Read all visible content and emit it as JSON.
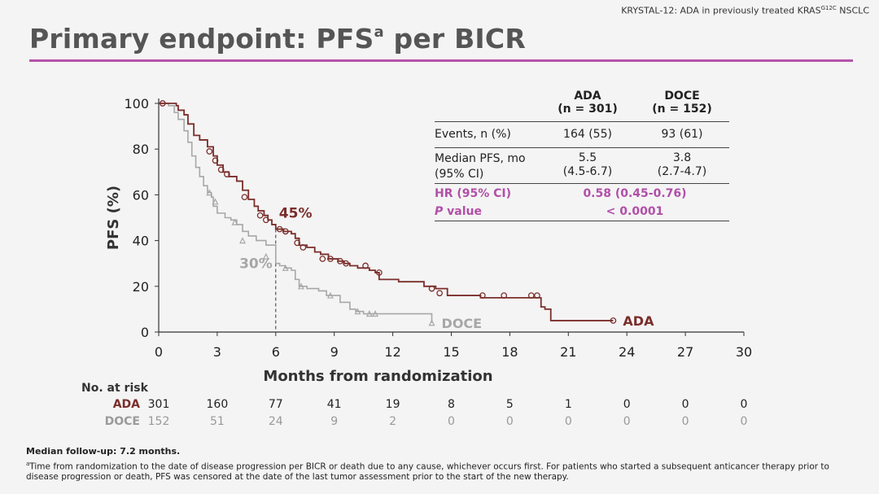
{
  "header": {
    "context_prefix": "KRYSTAL-12: ADA in previously treated KRAS",
    "context_sup": "G12C",
    "context_suffix": " NSCLC",
    "title_main": "Primary endpoint: PFS",
    "title_sup": "a",
    "title_suffix": " per BICR"
  },
  "table": {
    "col1_header": [
      "ADA",
      "(n = 301)"
    ],
    "col2_header": [
      "DOCE",
      "(n = 152)"
    ],
    "rows": [
      {
        "label": [
          "Events, n (%)"
        ],
        "v1": [
          "164 (55)"
        ],
        "v2": [
          "93 (61)"
        ]
      },
      {
        "label": [
          "Median PFS, mo",
          "(95% CI)"
        ],
        "v1": [
          "5.5",
          "(4.5-6.7)"
        ],
        "v2": [
          "3.8",
          "(2.7-4.7)"
        ]
      }
    ],
    "hr_label": "HR (95% CI)",
    "hr_value": "0.58 (0.45-0.76)",
    "p_label_italic": "P",
    "p_label_rest": " value",
    "p_value": "< 0.0001"
  },
  "chart_data": {
    "type": "line",
    "xlabel": "Months from randomization",
    "ylabel": "PFS (%)",
    "xlim": [
      0,
      30
    ],
    "ylim": [
      0,
      100
    ],
    "xticks": [
      0,
      3,
      6,
      9,
      12,
      15,
      18,
      21,
      24,
      27,
      30
    ],
    "yticks": [
      0,
      20,
      40,
      60,
      80,
      100
    ],
    "annotations": [
      {
        "text": "45%",
        "x": 6,
        "y": 45,
        "series": "ADA"
      },
      {
        "text": "30%",
        "x": 6,
        "y": 30,
        "series": "DOCE"
      }
    ],
    "series": [
      {
        "name": "ADA",
        "color": "#7a2e2b",
        "points": [
          [
            0,
            100
          ],
          [
            0.4,
            100
          ],
          [
            0.9,
            99
          ],
          [
            1,
            97
          ],
          [
            1.3,
            95
          ],
          [
            1.5,
            91
          ],
          [
            1.8,
            86
          ],
          [
            2.1,
            84
          ],
          [
            2.5,
            81
          ],
          [
            2.8,
            77
          ],
          [
            3,
            73
          ],
          [
            3.3,
            70
          ],
          [
            3.6,
            68
          ],
          [
            4,
            66
          ],
          [
            4.3,
            62
          ],
          [
            4.6,
            58
          ],
          [
            4.9,
            55
          ],
          [
            5.1,
            53
          ],
          [
            5.4,
            51
          ],
          [
            5.6,
            49
          ],
          [
            5.8,
            47
          ],
          [
            6,
            45
          ],
          [
            6.4,
            44
          ],
          [
            6.8,
            43
          ],
          [
            7,
            41
          ],
          [
            7.2,
            38
          ],
          [
            7.6,
            37
          ],
          [
            8,
            35
          ],
          [
            8.3,
            34
          ],
          [
            8.7,
            32
          ],
          [
            9.2,
            31
          ],
          [
            9.5,
            30
          ],
          [
            9.8,
            29
          ],
          [
            10.2,
            28
          ],
          [
            10.8,
            27
          ],
          [
            11.1,
            26
          ],
          [
            11.3,
            23
          ],
          [
            11.8,
            23
          ],
          [
            12.3,
            22
          ],
          [
            13,
            22
          ],
          [
            13.6,
            20
          ],
          [
            14.2,
            19
          ],
          [
            14.8,
            16
          ],
          [
            15.5,
            16
          ],
          [
            16.5,
            15
          ],
          [
            19.5,
            15
          ],
          [
            19.6,
            11
          ],
          [
            19.7,
            11
          ],
          [
            19.8,
            10
          ],
          [
            20.1,
            8
          ],
          [
            20.1,
            5
          ],
          [
            23.3,
            5
          ]
        ],
        "censored": [
          [
            0.2,
            100
          ],
          [
            2.6,
            79
          ],
          [
            2.9,
            75
          ],
          [
            3.2,
            71
          ],
          [
            3.5,
            69
          ],
          [
            4.4,
            59
          ],
          [
            5.2,
            51
          ],
          [
            5.5,
            49
          ],
          [
            6.2,
            45
          ],
          [
            6.5,
            44
          ],
          [
            7.1,
            39
          ],
          [
            7.4,
            37
          ],
          [
            8.4,
            32
          ],
          [
            8.8,
            32
          ],
          [
            9.3,
            31
          ],
          [
            9.6,
            30
          ],
          [
            10.6,
            29
          ],
          [
            11.3,
            26
          ],
          [
            14,
            19
          ],
          [
            14.4,
            17
          ],
          [
            16.6,
            16
          ],
          [
            17.7,
            16
          ],
          [
            19.1,
            16
          ],
          [
            19.4,
            16
          ],
          [
            23.3,
            5
          ]
        ]
      },
      {
        "name": "DOCE",
        "color": "#a7a7a7",
        "points": [
          [
            0,
            100
          ],
          [
            0.5,
            99
          ],
          [
            0.8,
            96
          ],
          [
            1,
            93
          ],
          [
            1.3,
            88
          ],
          [
            1.5,
            83
          ],
          [
            1.7,
            77
          ],
          [
            1.9,
            72
          ],
          [
            2.1,
            68
          ],
          [
            2.3,
            64
          ],
          [
            2.5,
            61
          ],
          [
            2.7,
            59
          ],
          [
            2.8,
            55
          ],
          [
            3,
            52
          ],
          [
            3.4,
            50
          ],
          [
            3.7,
            49
          ],
          [
            4,
            47
          ],
          [
            4.3,
            44
          ],
          [
            4.6,
            42
          ],
          [
            5,
            40
          ],
          [
            5.5,
            38
          ],
          [
            6,
            30
          ],
          [
            6.2,
            29
          ],
          [
            6.5,
            28
          ],
          [
            6.8,
            27
          ],
          [
            7,
            23
          ],
          [
            7.2,
            20
          ],
          [
            7.6,
            19
          ],
          [
            8.2,
            18
          ],
          [
            8.6,
            16
          ],
          [
            9.3,
            13
          ],
          [
            9.8,
            10
          ],
          [
            10.1,
            9
          ],
          [
            10.5,
            8
          ],
          [
            14,
            8
          ],
          [
            14,
            4
          ]
        ],
        "censored": [
          [
            2.6,
            61
          ],
          [
            2.9,
            57
          ],
          [
            3.9,
            48
          ],
          [
            4.3,
            40
          ],
          [
            5.5,
            33
          ],
          [
            6.5,
            28
          ],
          [
            7.3,
            20
          ],
          [
            8.8,
            16
          ],
          [
            10.2,
            9
          ],
          [
            10.8,
            8
          ],
          [
            11.1,
            8
          ],
          [
            14,
            4
          ]
        ]
      }
    ],
    "risk_table": {
      "header": "No. at risk",
      "times": [
        0,
        3,
        6,
        9,
        12,
        15,
        18,
        21,
        24,
        27,
        30
      ],
      "rows": [
        {
          "name": "ADA",
          "color": "#7a2e2b",
          "values": [
            "301",
            "160",
            "77",
            "41",
            "19",
            "8",
            "5",
            "1",
            "0",
            "0",
            "0"
          ]
        },
        {
          "name": "DOCE",
          "color": "#9a9a9a",
          "values": [
            "152",
            "51",
            "24",
            "9",
            "2",
            "0",
            "0",
            "0",
            "0",
            "0",
            "0"
          ]
        }
      ]
    }
  },
  "footer": {
    "followup": "Median follow-up: 7.2 months.",
    "footnote_sup": "a",
    "footnote": "Time from randomization to the date of disease progression per BICR or death due to any cause, whichever occurs first. For patients who started a subsequent anticancer therapy prior to disease progression or death, PFS was censored at the date of the last tumor assessment prior to the start of the new therapy."
  }
}
